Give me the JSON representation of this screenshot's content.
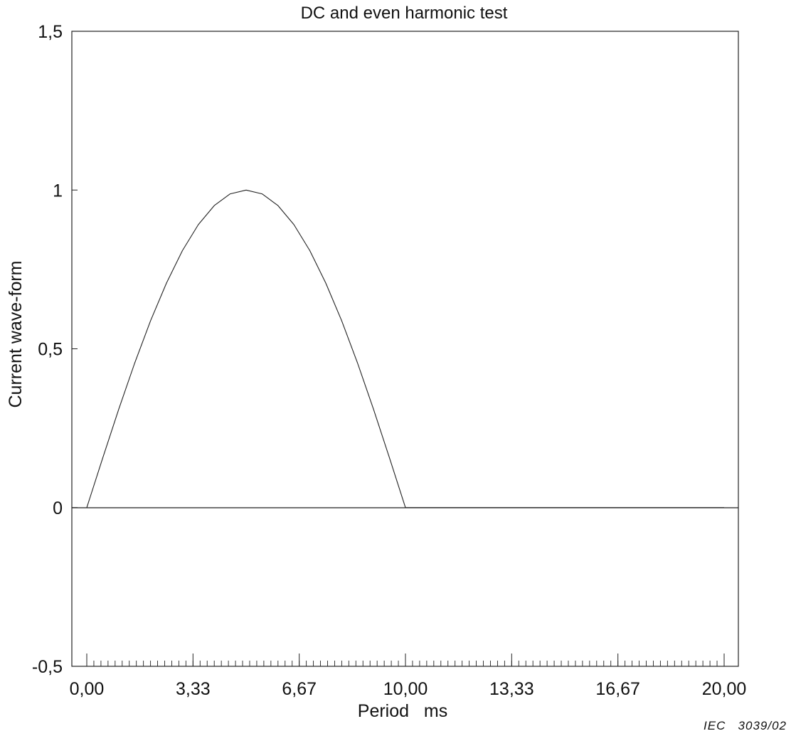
{
  "chart_data": {
    "type": "line",
    "title": "DC and even harmonic test",
    "xlabel": "Period   ms",
    "ylabel": "Current wave-form",
    "xlim": [
      0,
      20
    ],
    "ylim": [
      -0.5,
      1.5
    ],
    "x_ticks": [
      "0,00",
      "3,33",
      "6,67",
      "10,00",
      "13,33",
      "16,67",
      "20,00"
    ],
    "x_tick_values": [
      0,
      3.333,
      6.667,
      10,
      13.333,
      16.667,
      20
    ],
    "y_ticks": [
      "-0,5",
      "0",
      "0,5",
      "1",
      "1,5"
    ],
    "y_tick_values": [
      -0.5,
      0,
      0.5,
      1,
      1.5
    ],
    "grid": false,
    "series": [
      {
        "x": [
          0,
          0.5,
          1,
          1.5,
          2,
          2.5,
          3,
          3.5,
          4,
          4.5,
          5,
          5.5,
          6,
          6.5,
          7,
          7.5,
          8,
          8.5,
          9,
          9.5,
          10,
          12,
          14,
          16,
          18,
          20
        ],
        "y": [
          0,
          0.156,
          0.309,
          0.454,
          0.588,
          0.707,
          0.809,
          0.891,
          0.951,
          0.988,
          1,
          0.988,
          0.951,
          0.891,
          0.809,
          0.707,
          0.588,
          0.454,
          0.309,
          0.156,
          0,
          0,
          0,
          0,
          0,
          0
        ]
      }
    ],
    "zero_line": true
  },
  "credit": "IEC   3039/02",
  "colors": {
    "line": "#222222",
    "axis": "#222222"
  }
}
